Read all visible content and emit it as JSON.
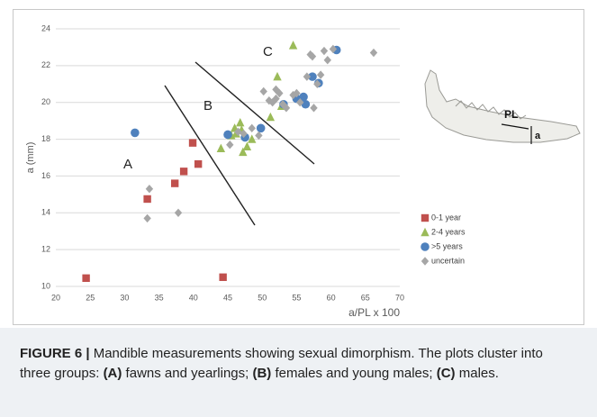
{
  "chart_data": {
    "type": "scatter",
    "x_label": "a/PL x 100",
    "y_label": "a (mm)",
    "xlim": [
      20,
      70
    ],
    "xticks": [
      20,
      25,
      30,
      35,
      40,
      45,
      50,
      55,
      60,
      65,
      70
    ],
    "ylim": [
      10,
      24
    ],
    "yticks": [
      10,
      12,
      14,
      16,
      18,
      20,
      22,
      24
    ],
    "grid": true,
    "annotations": [
      "A",
      "B",
      "C",
      "PL",
      "a"
    ],
    "series": [
      {
        "name": "0-1 year",
        "color": "#c0504d",
        "marker": "square",
        "x": [
          24.4,
          33.3,
          37.3,
          38.6,
          39.9,
          40.7,
          44.3
        ],
        "values": [
          10.45,
          14.75,
          15.6,
          16.25,
          17.8,
          16.65,
          10.5
        ]
      },
      {
        "name": "2-4 years",
        "color": "#9bbb59",
        "marker": "triangle",
        "x": [
          44.0,
          45.5,
          46.0,
          46.2,
          46.8,
          47.0,
          47.2,
          47.8,
          48.5,
          51.2,
          52.2,
          52.8,
          54.5
        ],
        "values": [
          17.5,
          18.2,
          18.6,
          18.3,
          18.9,
          18.5,
          17.3,
          17.6,
          18.0,
          19.2,
          21.4,
          19.8,
          23.1
        ]
      },
      {
        "name": ">5 years",
        "color": "#4f81bd",
        "marker": "circle",
        "x": [
          31.5,
          45.0,
          47.5,
          49.8,
          53.1,
          55.0,
          56.0,
          56.3,
          57.3,
          58.2,
          60.8
        ],
        "values": [
          18.35,
          18.25,
          18.1,
          18.6,
          19.9,
          20.2,
          20.3,
          19.9,
          21.4,
          21.05,
          22.85
        ]
      },
      {
        "name": "uncertain",
        "color": "#a6a6a6",
        "marker": "diamond",
        "x": [
          33.3,
          33.6,
          37.8,
          45.3,
          46.5,
          47.3,
          48.5,
          49.5,
          50.2,
          51.0,
          51.5,
          52.0,
          52.0,
          52.5,
          53.0,
          53.5,
          54.5,
          55.0,
          55.5,
          56.5,
          57.0,
          57.3,
          57.5,
          58.0,
          58.5,
          59.0,
          59.5,
          60.3,
          66.2
        ],
        "values": [
          13.7,
          15.3,
          14.0,
          17.7,
          18.4,
          18.3,
          18.6,
          18.2,
          20.6,
          20.1,
          20.0,
          20.7,
          20.2,
          20.5,
          19.9,
          19.7,
          20.4,
          20.5,
          20.0,
          21.4,
          22.6,
          22.5,
          19.7,
          21.0,
          21.5,
          22.8,
          22.3,
          22.9,
          22.7
        ]
      }
    ]
  },
  "caption": [
    {
      "text": "FIGURE 6 |",
      "bold": true
    },
    {
      "text": " Mandible measurements showing sexual dimorphism. The plots cluster into three groups: ",
      "bold": false
    },
    {
      "text": "(A)",
      "bold": true
    },
    {
      "text": " fawns and yearlings; ",
      "bold": false
    },
    {
      "text": "(B)",
      "bold": true
    },
    {
      "text": " females and young males; ",
      "bold": false
    },
    {
      "text": "(C)",
      "bold": true
    },
    {
      "text": " males.",
      "bold": false
    }
  ]
}
